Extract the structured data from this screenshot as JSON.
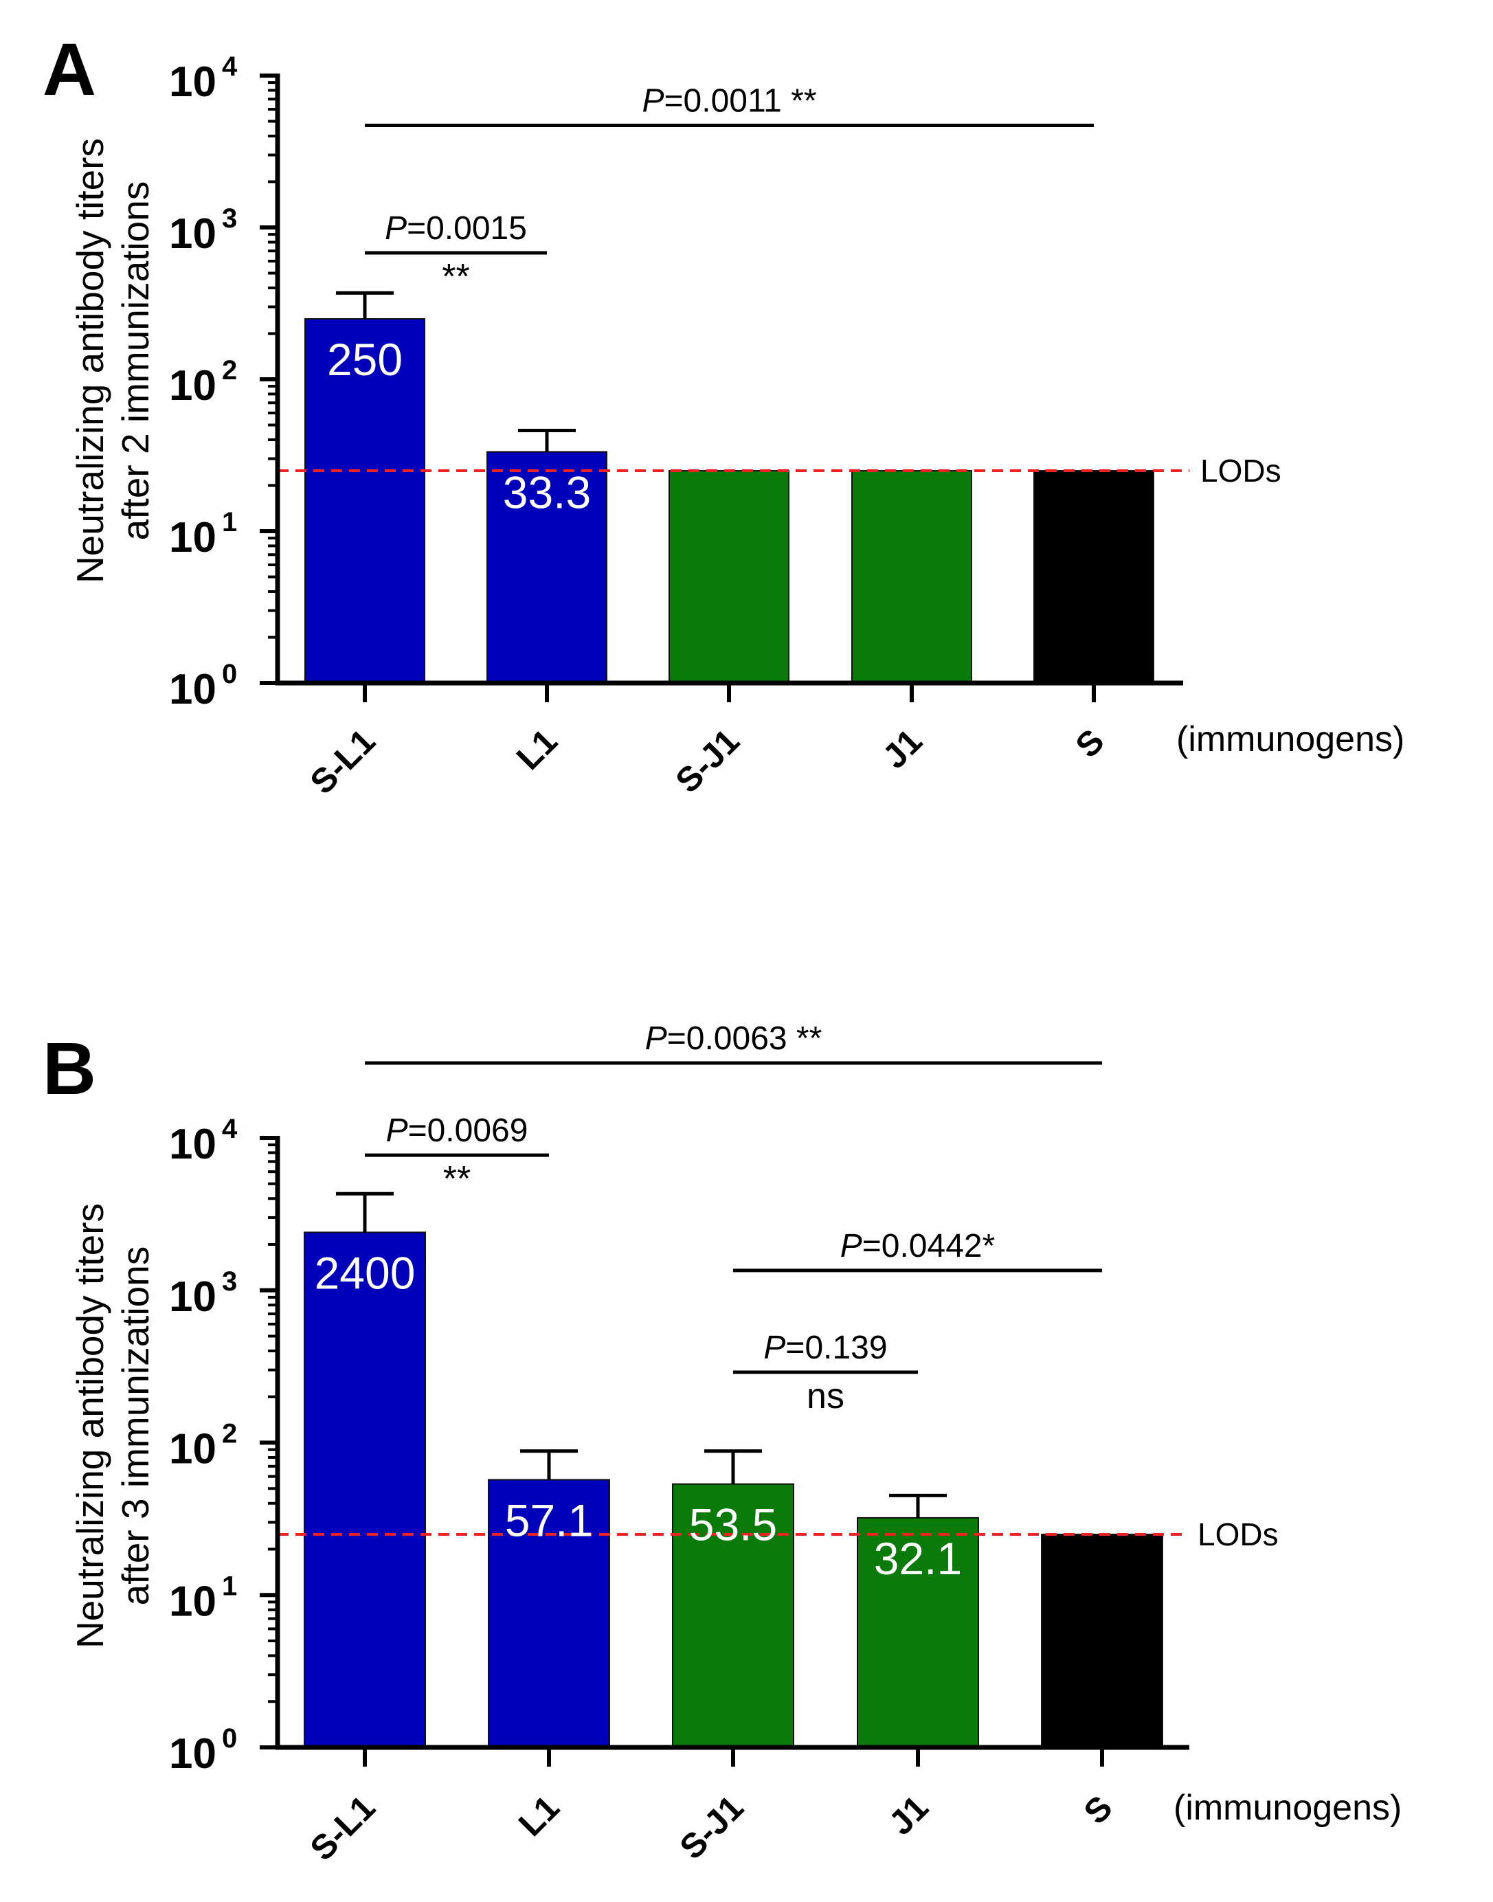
{
  "chart_data": [
    {
      "panel": "A",
      "type": "bar",
      "ylabel": [
        "Neutralizing antibody titers",
        "after 2 immunizations"
      ],
      "y_scale": "log",
      "ylim": [
        1,
        10000
      ],
      "yticks": [
        {
          "base": "10",
          "exp": "0"
        },
        {
          "base": "10",
          "exp": "1"
        },
        {
          "base": "10",
          "exp": "2"
        },
        {
          "base": "10",
          "exp": "3"
        },
        {
          "base": "10",
          "exp": "4"
        }
      ],
      "categories": [
        "S-L1",
        "L1",
        "S-J1",
        "J1",
        "S"
      ],
      "xlabel_note": "(immunogens)",
      "values": [
        250,
        33.3,
        25,
        25,
        25
      ],
      "error_upper": [
        370,
        46,
        null,
        null,
        null
      ],
      "bar_labels": [
        "250",
        "33.3",
        "",
        "",
        ""
      ],
      "bar_colors": [
        "#0000bb",
        "#0000bb",
        "#0a7a0a",
        "#0a7a0a",
        "#000000"
      ],
      "lod": {
        "value": 25,
        "label": "LODs",
        "color": "#ee2222"
      },
      "comparisons": [
        {
          "from": 0,
          "to": 4,
          "p_prefix": "P",
          "p_text": "=0.0011 **",
          "stars": "",
          "y_value": 4700
        },
        {
          "from": 0,
          "to": 1,
          "p_prefix": "P",
          "p_text": "=0.0015",
          "stars": "**",
          "y_value": 680
        }
      ]
    },
    {
      "panel": "B",
      "type": "bar",
      "ylabel": [
        "Neutralizing antibody titers",
        "after 3 immunizations"
      ],
      "y_scale": "log",
      "ylim": [
        1,
        10000
      ],
      "yticks": [
        {
          "base": "10",
          "exp": "0"
        },
        {
          "base": "10",
          "exp": "1"
        },
        {
          "base": "10",
          "exp": "2"
        },
        {
          "base": "10",
          "exp": "3"
        },
        {
          "base": "10",
          "exp": "4"
        }
      ],
      "categories": [
        "S-L1",
        "L1",
        "S-J1",
        "J1",
        "S"
      ],
      "xlabel_note": "(immunogens)",
      "values": [
        2400,
        57.1,
        53.5,
        32.1,
        25
      ],
      "error_upper": [
        4300,
        88,
        88,
        45,
        null
      ],
      "bar_labels": [
        "2400",
        "57.1",
        "53.5",
        "32.1",
        ""
      ],
      "bar_colors": [
        "#0000bb",
        "#0000bb",
        "#0a7a0a",
        "#0a7a0a",
        "#000000"
      ],
      "lod": {
        "value": 25,
        "label": "LODs",
        "color": "#ee2222"
      },
      "comparisons": [
        {
          "from": 0,
          "to": 4,
          "p_prefix": "P",
          "p_text": "=0.0063 **",
          "stars": "",
          "y_value": 31000
        },
        {
          "from": 0,
          "to": 1,
          "p_prefix": "P",
          "p_text": "=0.0069",
          "stars": "**",
          "y_value": 7700
        },
        {
          "from": 2,
          "to": 4,
          "p_prefix": "P",
          "p_text": "=0.0442*",
          "stars": "",
          "y_value": 1350
        },
        {
          "from": 2,
          "to": 3,
          "p_prefix": "P",
          "p_text": "=0.139",
          "stars": "ns",
          "y_value": 290
        }
      ]
    }
  ]
}
